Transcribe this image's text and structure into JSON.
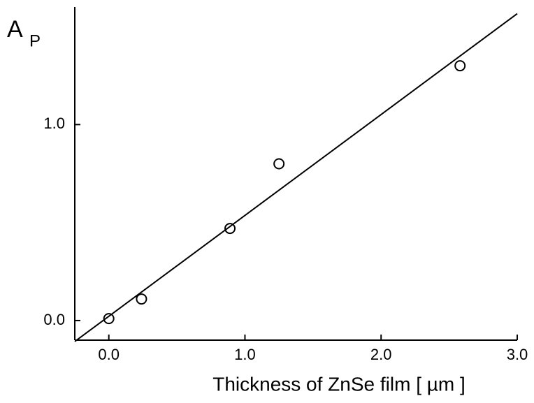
{
  "chart_data": {
    "type": "scatter",
    "ylabel": "A",
    "ylabel_sub": "P",
    "xlabel": "Thickness of ZnSe film  [ µm ]",
    "x": [
      0.0,
      0.24,
      0.89,
      1.25,
      2.58
    ],
    "values": [
      0.01,
      0.11,
      0.47,
      0.8,
      1.3
    ],
    "marker_color": "#000000",
    "fit_line": {
      "x": [
        -0.25,
        3.0
      ],
      "values": [
        -0.107,
        1.566
      ],
      "color": "#000000"
    },
    "xlim": [
      -0.25,
      3.0
    ],
    "ylim": [
      -0.1,
      1.6
    ],
    "xticks": [
      {
        "value": 0,
        "label": "0.0"
      },
      {
        "value": 1,
        "label": "1.0"
      },
      {
        "value": 2,
        "label": "2.0"
      },
      {
        "value": 3,
        "label": "3.0"
      }
    ],
    "yticks": [
      {
        "value": 0,
        "label": "0.0"
      },
      {
        "value": 1,
        "label": "1.0"
      }
    ]
  }
}
